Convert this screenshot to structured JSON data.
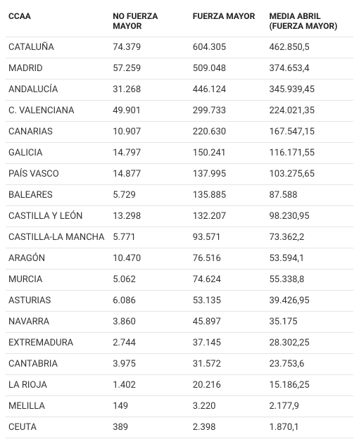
{
  "table": {
    "columns": [
      "CCAA",
      "NO FUERZA MAYOR",
      "FUERZA MAYOR",
      "MEDIA ABRIL (FUERZA MAYOR)"
    ],
    "rows": [
      [
        "CATALUÑA",
        "74.379",
        "604.305",
        "462.850,5"
      ],
      [
        "MADRID",
        "57.259",
        "509.048",
        "374.653,4"
      ],
      [
        "ANDALUCÍA",
        "31.268",
        "446.124",
        "345.939,45"
      ],
      [
        "C. VALENCIANA",
        "49.901",
        "299.733",
        "224.021,35"
      ],
      [
        "CANARIAS",
        "10.907",
        "220.630",
        "167.547,15"
      ],
      [
        "GALICIA",
        "14.797",
        "150.241",
        "116.171,55"
      ],
      [
        "PAÍS VASCO",
        "14.877",
        "137.995",
        "103.275,65"
      ],
      [
        "BALEARES",
        "5.729",
        "135.885",
        "87.588"
      ],
      [
        "CASTILLA Y LEÓN",
        "13.298",
        "132.207",
        "98.230,95"
      ],
      [
        "CASTILLA-LA MANCHA",
        "5.771",
        "93.571",
        "73.362,2"
      ],
      [
        "ARAGÓN",
        "10.470",
        "76.516",
        "53.594,1"
      ],
      [
        "MURCIA",
        "5.062",
        "74.624",
        "55.338,8"
      ],
      [
        "ASTURIAS",
        "6.086",
        "53.135",
        "39.426,95"
      ],
      [
        "NAVARRA",
        "3.860",
        "45.897",
        "35.175"
      ],
      [
        "EXTREMADURA",
        "2.744",
        "37.145",
        "28.302,25"
      ],
      [
        "CANTABRIA",
        "3.975",
        "31.572",
        "23.753,6"
      ],
      [
        "LA RIOJA",
        "1.402",
        "20.216",
        "15.186,25"
      ],
      [
        "MELILLA",
        "149",
        "3.220",
        "2.177,9"
      ],
      [
        "CEUTA",
        "389",
        "2.398",
        "1.870,1"
      ]
    ]
  }
}
